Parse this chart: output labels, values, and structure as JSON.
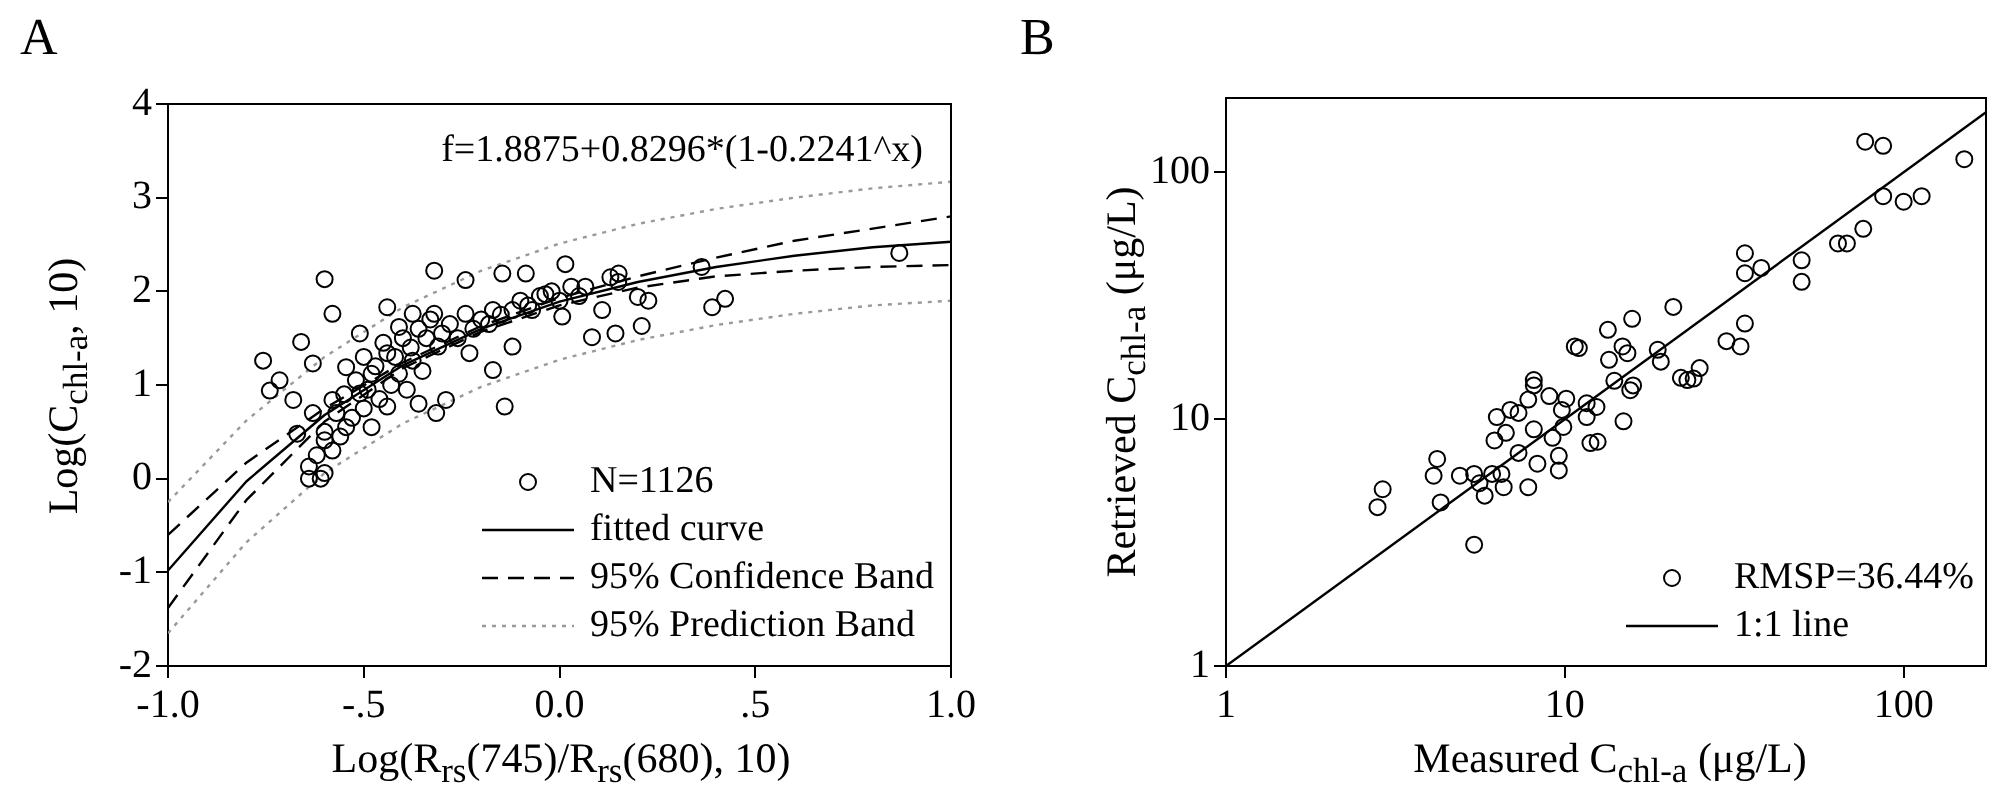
{
  "chart_data": [
    {
      "type": "scatter",
      "title": "A",
      "xlabel": "Log(R$_{rs}$(745)/R$_{rs}$(680), 10)",
      "ylabel": "Log(C$_{chl-a}$, 10)",
      "xlim": [
        -1,
        1
      ],
      "ylim": [
        -2,
        4
      ],
      "xticks": [
        {
          "value": -1,
          "label": "-1.0"
        },
        {
          "value": -0.5,
          "label": "-.5"
        },
        {
          "value": 0,
          "label": "0.0"
        },
        {
          "value": 0.5,
          "label": ".5"
        },
        {
          "value": 1,
          "label": "1.0"
        }
      ],
      "yticks": [
        -2,
        -1,
        0,
        1,
        2,
        3,
        4
      ],
      "grid": false,
      "legend": "bottom right",
      "annotations": [
        "f=1.8875+0.8296*(1-0.2241^x)"
      ],
      "series": [
        {
          "name": "N=1126",
          "type": "scatter",
          "marker": "circle",
          "color": "#000000",
          "x": [
            -0.757,
            -0.74,
            -0.715,
            -0.66,
            -0.68,
            -0.67,
            -0.6,
            -0.64,
            -0.64,
            -0.61,
            -0.6,
            -0.63,
            -0.58,
            -0.63,
            -0.6,
            -0.58,
            -0.545,
            -0.545,
            -0.51,
            -0.51,
            -0.48,
            -0.48,
            -0.44,
            -0.44,
            -0.44,
            -0.41,
            -0.41,
            -0.375,
            -0.375,
            -0.36,
            -0.32,
            -0.315,
            -0.32,
            -0.31,
            -0.29,
            -0.24,
            -0.23,
            -0.24,
            -0.17,
            -0.146,
            -0.14,
            -0.17,
            -0.12,
            -0.086,
            -0.07,
            0.015,
            0.007,
            -0.036,
            0.066,
            0.083,
            0.109,
            0.143,
            0.151,
            0.2,
            0.21,
            0.227,
            0.363,
            0.39,
            0.423,
            0.868,
            -0.62,
            -0.6,
            -0.58,
            -0.57,
            -0.56,
            -0.55,
            -0.53,
            -0.52,
            -0.5,
            -0.5,
            -0.49,
            -0.47,
            -0.46,
            -0.45,
            -0.43,
            -0.42,
            -0.4,
            -0.39,
            -0.38,
            -0.36,
            -0.35,
            -0.34,
            -0.33,
            -0.3,
            -0.28,
            -0.26,
            -0.22,
            -0.2,
            -0.18,
            -0.15,
            -0.12,
            -0.1,
            -0.08,
            -0.05,
            -0.02,
            0,
            0.03,
            0.05,
            0.13,
            0.15
          ],
          "values": [
            1.26,
            0.94,
            1.05,
            1.46,
            0.84,
            0.48,
            2.13,
            0.13,
            0,
            0,
            0.06,
            1.23,
            1.76,
            0.7,
            0.41,
            0.84,
            1.19,
            0.55,
            1.55,
            0.91,
            1.12,
            0.55,
            1.83,
            1.34,
            0.77,
            1.62,
            1.12,
            1.76,
            1.26,
            0.8,
            2.22,
            0.7,
            1.76,
            1.41,
            0.84,
            2.12,
            1.34,
            1.76,
            1.8,
            2.19,
            0.77,
            1.16,
            1.41,
            2.19,
            1.8,
            2.29,
            1.73,
            1.97,
            2.05,
            1.51,
            1.8,
            1.55,
            2.19,
            1.94,
            1.63,
            1.9,
            2.26,
            1.83,
            1.92,
            2.41,
            0.25,
            0.5,
            0.3,
            0.7,
            0.45,
            0.9,
            0.65,
            1.05,
            0.75,
            1.3,
            0.95,
            1.2,
            0.85,
            1.45,
            1,
            1.3,
            1.5,
            0.95,
            1.4,
            1.6,
            1.15,
            1.5,
            1.7,
            1.55,
            1.65,
            1.5,
            1.6,
            1.7,
            1.65,
            1.75,
            1.8,
            1.9,
            1.85,
            1.95,
            2,
            1.9,
            2.05,
            1.95,
            2.15,
            2.1
          ]
        },
        {
          "name": "fitted curve",
          "type": "line",
          "marker": "none",
          "line_style": "solid",
          "color": "#000000",
          "x": [
            -1,
            -0.8,
            -0.6,
            -0.4,
            -0.2,
            0,
            0.2,
            0.4,
            0.6,
            0.8,
            1
          ],
          "values": [
            -0.98,
            -0.03,
            0.68,
            1.21,
            1.6,
            1.89,
            2.1,
            2.26,
            2.38,
            2.47,
            2.53
          ]
        },
        {
          "name": "95% Confidence Band",
          "type": "line",
          "marker": "none",
          "line_style": "dashed",
          "color": "#000000",
          "x": [
            -1,
            -0.8,
            -0.6,
            -0.4,
            -0.2,
            0,
            0.2,
            0.4,
            0.6,
            0.8,
            1
          ],
          "values": [
            -0.6,
            0.17,
            0.75,
            1.24,
            1.63,
            1.93,
            2.16,
            2.36,
            2.54,
            2.67,
            2.8
          ]
        },
        {
          "type": "line",
          "marker": "none",
          "line_style": "dashed",
          "color": "#000000",
          "x": [
            -1,
            -0.8,
            -0.6,
            -0.4,
            -0.2,
            0,
            0.2,
            0.4,
            0.6,
            0.8,
            1
          ],
          "values": [
            -1.38,
            -0.23,
            0.61,
            1.18,
            1.57,
            1.85,
            2.04,
            2.16,
            2.22,
            2.26,
            2.28
          ]
        },
        {
          "name": "95% Prediction Band",
          "type": "line",
          "marker": "none",
          "line_style": "dotted",
          "color": "#999999",
          "x": [
            -1,
            -0.8,
            -0.6,
            -0.4,
            -0.2,
            0,
            0.2,
            0.4,
            0.6,
            0.8,
            1
          ],
          "values": [
            -0.25,
            0.62,
            1.3,
            1.83,
            2.22,
            2.51,
            2.72,
            2.88,
            3,
            3.1,
            3.17
          ]
        },
        {
          "type": "line",
          "marker": "none",
          "line_style": "dotted",
          "color": "#999999",
          "x": [
            -1,
            -0.8,
            -0.6,
            -0.4,
            -0.2,
            0,
            0.2,
            0.4,
            0.6,
            0.8,
            1
          ],
          "values": [
            -1.65,
            -0.68,
            0.06,
            0.59,
            0.98,
            1.27,
            1.48,
            1.64,
            1.76,
            1.85,
            1.9
          ]
        }
      ]
    },
    {
      "type": "scatter",
      "title": "B",
      "xlabel": "Measured C$_{chl-a}$ (μg/L)",
      "ylabel": "Retrieved C$_{chl-a}$ (μg/L)",
      "log": "xy",
      "xlim": [
        1,
        175
      ],
      "ylim": [
        1,
        200
      ],
      "xticks": [
        1,
        10,
        100
      ],
      "yticks": [
        1,
        10,
        100
      ],
      "grid": false,
      "legend": "bottom right",
      "series": [
        {
          "name": "RMSP=36.44%",
          "type": "scatter",
          "marker": "circle",
          "color": "#000000",
          "x": [
            2.8,
            2.9,
            4.2,
            4.1,
            4.3,
            4.9,
            5.4,
            5.6,
            5.4,
            5.8,
            6.1,
            6.5,
            6.6,
            6.2,
            6.3,
            6.7,
            6.9,
            7.3,
            7.3,
            7.8,
            7.8,
            8.1,
            8.1,
            8.1,
            8.3,
            9,
            9.2,
            9.6,
            9.6,
            9.8,
            9.9,
            10.1,
            10.7,
            11,
            11.6,
            11.6,
            11.9,
            12.4,
            12.5,
            13.4,
            13.5,
            14,
            14.8,
            14.9,
            15.3,
            15.6,
            15.8,
            15.9,
            18.8,
            19.2,
            20.9,
            22,
            23,
            24,
            25,
            30,
            33,
            34,
            34,
            34,
            38,
            50,
            50,
            64,
            68,
            76,
            77,
            87,
            87,
            100,
            113,
            151
          ],
          "values": [
            4.4,
            5.2,
            6.9,
            5.9,
            4.6,
            5.9,
            6,
            5.5,
            3.1,
            4.9,
            6,
            6,
            5.3,
            8.2,
            10.2,
            8.8,
            10.9,
            10.6,
            7.3,
            5.3,
            12,
            14.4,
            13.7,
            9.1,
            6.6,
            12.4,
            8.4,
            7.1,
            6.2,
            10.9,
            9.3,
            12.1,
            19.7,
            19.4,
            11.6,
            10.2,
            8,
            11.2,
            8.1,
            23,
            17.4,
            14.3,
            19.7,
            9.8,
            18.5,
            13.1,
            25.5,
            13.7,
            19.1,
            17.1,
            28.5,
            14.7,
            14.4,
            14.6,
            16.1,
            20.7,
            19.7,
            24.4,
            47,
            39,
            41,
            44,
            36,
            51.5,
            51.5,
            59,
            133,
            128,
            80,
            76,
            80,
            113
          ]
        },
        {
          "name": "1:1 line",
          "type": "line",
          "marker": "none",
          "line_style": "solid",
          "color": "#000000",
          "x": [
            1,
            175
          ],
          "values": [
            1,
            175
          ]
        }
      ]
    }
  ]
}
